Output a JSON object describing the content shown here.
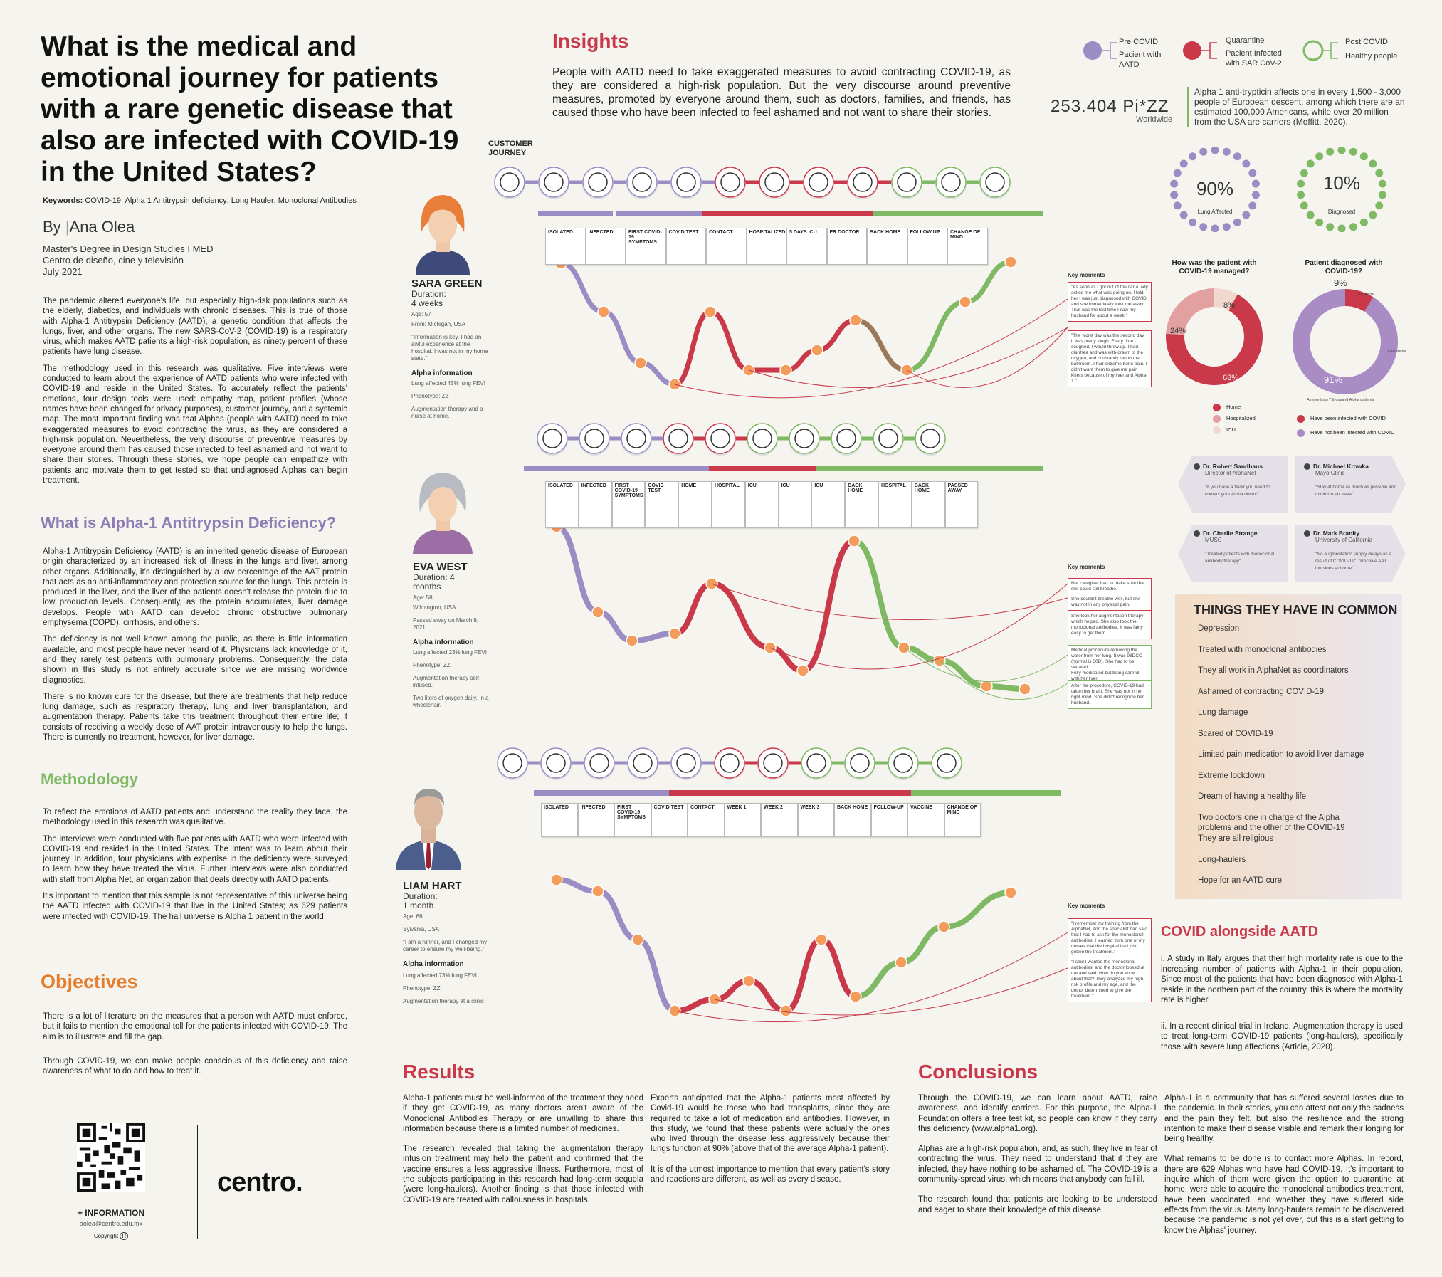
{
  "title": "What is the medical and emotional journey for patients with a rare genetic disease that also are infected with COVID-19 in the United States?",
  "keywords_label": "Keywords:",
  "keywords": "COVID-19; Alpha 1 Antitrypsin deficiency; Long Hauler; Monoclonal Antibodies",
  "by_label": "By",
  "author": "Ana Olea",
  "affiliation": [
    "Master's Degree in Design Studies  I MED",
    "Centro de diseño, cine y televisión",
    "July 2021"
  ],
  "intro": [
    "The pandemic altered everyone's life, but especially high-risk populations such as the elderly, diabetics, and individuals with chronic diseases. This is true of those with Alpha-1 Antitrypsin Deficiency (AATD), a genetic condition that affects the lungs, liver, and other organs. The new SARS-CoV-2 (COVID-19) is a respiratory virus, which makes AATD patients a high-risk population, as ninety percent of these patients have lung disease.",
    "The methodology used in this research was qualitative. Five interviews were conducted to learn about the experience of AATD patients who were infected with COVID-19 and reside in the United States. To accurately reflect the patients' emotions, four design tools were used: empathy map, patient profiles (whose names have been changed for privacy purposes), customer journey, and a systemic map. The most important finding was that Alphas (people with AATD) need to take exaggerated measures to avoid contracting the virus, as they are considered a high-risk population. Nevertheless, the very discourse of preventive measures by everyone around them has caused those infected to feel ashamed and not want to share their stories. Through these stories, we hope people can empathize with patients and motivate them to get tested so that undiagnosed Alphas can begin treatment."
  ],
  "aatd_heading": "What is Alpha-1 Antitrypsin Deficiency?",
  "aatd": [
    "Alpha-1 Antitrypsin Deficiency (AATD) is an inherited genetic disease of European origin characterized by an increased risk of illness in the lungs and liver, among other organs. Additionally, it's distinguished by a low percentage of the AAT protein that acts as an anti-inflammatory and protection source for the lungs. This protein is produced in the liver, and the liver of the patients doesn't release the protein due to low production levels. Consequently, as the protein accumulates, liver damage develops. People with AATD can develop chronic obstructive pulmonary emphysema (COPD), cirrhosis, and others.",
    "The deficiency is not well known among the public, as there is little information available, and most people have never heard of it. Physicians lack knowledge of it, and they rarely test patients with pulmonary problems. Consequently, the data shown in this study is not entirely accurate since we are missing worldwide diagnostics.",
    "There is no known cure for the disease, but there are treatments that help reduce lung damage, such as respiratory therapy, lung and liver transplantation, and augmentation therapy. Patients take this treatment throughout their entire life; it consists of receiving a weekly dose of AAT protein intravenously to help the lungs. There is currently no treatment, however, for liver damage."
  ],
  "method_heading": "Methodology",
  "method": [
    "To reflect the emotions of AATD patients and understand the reality they face, the methodology used in this research was qualitative.",
    "The interviews were conducted with five patients with AATD who were infected with COVID-19 and resided in the United States. The intent was to learn about their journey. In addition, four physicians with expertise in the deficiency were surveyed to learn how they have treated the virus. Further interviews were also conducted with staff from Alpha Net, an organization that deals directly with AATD patients.",
    "It's important to mention that this sample is not representative of this universe being the AATD infected with COVID-19 that live in the United States; as 629 patients were infected with COVID-19. The hall universe is Alpha 1 patient in the world."
  ],
  "obj_heading": "Objectives",
  "obj": [
    "There is a lot of literature on the measures that a person with AATD must enforce, but it fails to mention the emotional toll for the patients infected with COVID-19. The aim is to illustrate and fill the gap.",
    "Through COVID-19, we can make people conscious of this deficiency and raise awareness of what to do and how to treat it."
  ],
  "more_info": "+ INFORMATION",
  "email": "aolea@centro.edu.mx",
  "copyright": "Copyright",
  "logo": "centro.",
  "insights_heading": "Insights",
  "insights": "People with AATD need to take exaggerated measures to avoid contracting COVID-19, as they are considered a high-risk population. But the very discourse around preventive measures, promoted by everyone around them, such as doctors, families, and friends, has caused those who have been infected to feel ashamed and not want to share their stories.",
  "cj_label": [
    "CUSTOMER",
    "JOURNEY"
  ],
  "legend": [
    {
      "top": "Pre COVID",
      "bottom": "Pacient with AATD",
      "color": "#9b8cc4"
    },
    {
      "top": "Quarantine",
      "bottom": "Pacient Infected with SAR CoV-2",
      "color": "#c93949"
    },
    {
      "top": "Post COVID",
      "bottom": "Healthy people",
      "color": "#7fb963"
    }
  ],
  "stat_number": "253.404 Pi*ZZ",
  "stat_sub": "Worldwide",
  "stat_text": "Alpha 1 anti-trypticin affects one in every 1,500 - 3,000 people of European descent, among which there are an estimated 100,000 Americans, while over 20 million from the USA are carriers (Moffitt, 2020).",
  "ring1": {
    "pct": "90%",
    "label": "Lung Affected"
  },
  "ring2": {
    "pct": "10%",
    "label": "Diagnosed"
  },
  "donut1": {
    "title": "How was the patient with COVID-19 managed?",
    "labels": [
      "8%",
      "24%",
      "68%"
    ],
    "legend": [
      "Home",
      "Hospitalized",
      "ICU"
    ]
  },
  "donut2": {
    "title": "Patient diagnosed with COVID-19?",
    "labels": [
      "9%",
      "91%"
    ],
    "small": [
      "629 patients",
      "6,500 patients"
    ],
    "note": "A more than 7 thousand Alpha patients",
    "legend": [
      "Have been infected with COVID",
      "Have not been infected with COVID"
    ]
  },
  "patients": [
    {
      "name": "SARA GREEN",
      "duration_label": "Duration:",
      "duration": "4 weeks",
      "age": "Age: 57",
      "from": "From: Michigan, USA",
      "quote": "\"Information is key. I had an awful experience at the hospital. I was not in my home state.\"",
      "alpha_label": "Alpha information",
      "lung": "Lung affected 45% lung FEVI",
      "pheno": "Phenotype: ZZ",
      "therapy": "Augmentation therapy and a nurse at home."
    },
    {
      "name": "EVA  WEST",
      "duration_label": "Duration: 4",
      "duration": "months",
      "age": "Age: 58",
      "from": "Wilmington, USA",
      "quote": "Passed away on March 9, 2021",
      "alpha_label": "Alpha information",
      "lung": "Lung affected 23% lung FEVI",
      "pheno": "Phenotype: ZZ",
      "therapy": "Augmentation therapy self-infused.",
      "extra": "Two liters of oxygen daily. In a wheelchair."
    },
    {
      "name": "LIAM HART",
      "duration_label": "Duration:",
      "duration": "1 month",
      "age": "Age: 66",
      "from": "Sylvania, USA",
      "quote": "\"I am a runner, and I changed my career to ensure my well-being.\"",
      "alpha_label": "Alpha information",
      "lung": "Lung affected 73% lung FEVI",
      "pheno": "Phenotype: ZZ",
      "therapy": "Augmentation therapy at a clinic"
    }
  ],
  "journey1_cards": [
    "ISOLATED",
    "INFECTED",
    "FIRST COVID-19 SYMPTOMS",
    "COVID TEST",
    "CONTACT",
    "HOSPITALIZED",
    "5 DAYS ICU",
    "ER DOCTOR",
    "BACK HOME",
    "FOLLOW UP",
    "CHANGE OF MIND"
  ],
  "journey2_cards": [
    "ISOLATED",
    "INFECTED",
    "FIRST COVID-19 SYMPTOMS",
    "COVID TEST",
    "HOME",
    "HOSPITAL",
    "ICU",
    "ICU",
    "ICU",
    "BACK HOME",
    "HOSPITAL",
    "BACK HOME",
    "PASSED AWAY"
  ],
  "journey3_cards": [
    "ISOLATED",
    "INFECTED",
    "FIRST COVID-19 SYMPTOMS",
    "COVID TEST",
    "CONTACT",
    "WEEK 1",
    "WEEK 2",
    "WEEK 3",
    "BACK HOME",
    "FOLLOW-UP",
    "VACCINE",
    "CHANGE OF MIND"
  ],
  "key_moments": "Key moments",
  "km1": [
    "\"As soon as I got out of the car a lady asked me what was going on. I told her I was just diagnosed with COVID and she immediately took me away. That was the last time I saw my husband for about a week.\"",
    "\"The worst day was the second day, it was pretty tough. Every time I coughed, I would throw up. I had diarrhea and was with-drawn to the oxygen, and constantly ran to the bathroom. I had extreme bone pain. I didn't want them to give me pain killers because of my liver and Alpha-1.\""
  ],
  "km2": [
    "Her caregiver had to make sure that she could still breathe.",
    "She couldn't breathe well, but she was not in any physical pain.",
    "She took her augmentation therapy which helped. She also took the monoclonal antibodies. It was fairly easy to get them.",
    "Medical procedure removing the water from her lung. It was 98DCC (normal is 30D). She had to be sedated.",
    "Fully medicated but being careful with her liver.",
    "After the procedure, COVID-19 had taken her brain. She was not in her right mind. She didn't recognize her husband."
  ],
  "km3": [
    "\"I remember my training from the AlphaNet, and the specialist had said that I had to ask for the monoclonal antibodies. I learned from one of my nurses that the hospital had just gotten the treatment.\"",
    "\"I said I wanted the monoclonal antibodies, and the doctor looked at me and said: How do you know about that? They analyzed my high-risk profile and my age, and the doctor determined to give the treatment.\""
  ],
  "doctors": [
    {
      "name": "Dr. Robert Sandhaus",
      "org": "Director of AlphaNet",
      "quote": "\"If you have a fever you need to contact your Alpha doctor\"."
    },
    {
      "name": "Dr. Michael Krowka",
      "org": "Mayo Clinic",
      "quote": "\"Stay at home as much as possible and minimize air travel\"."
    },
    {
      "name": "Dr. Charlie Strange",
      "org": "MUSC",
      "quote": "\"Treated patients with monoclonal antibody therapy\"."
    },
    {
      "name": "Dr. Mark Branlty",
      "org": "University of California",
      "quote": "\"No augmentation supply delays as a result of COVID-19\". \"Receive AAT infusions at home\"."
    }
  ],
  "common_heading": "THINGS THEY HAVE IN COMMON",
  "common": [
    "Depression",
    "Treated with monoclonal antibodies",
    "They all work in AlphaNet as coordinators",
    "Ashamed of contracting COVID-19",
    "Lung damage",
    "Scared of COVID-19",
    "Limited pain medication to avoid liver damage",
    "Extreme lockdown",
    "Dream of having a healthy life",
    "Two doctors one in charge of the Alpha problems and the other of the COVID-19",
    "They are all religious",
    "Long-haulers",
    "Hope for an AATD cure"
  ],
  "covid_heading": "COVID alongside AATD",
  "covid": [
    "i. A study in Italy argues that their high mortality rate is due to the increasing number of patients with Alpha-1 in their population. Since most of the patients that have been diagnosed with Alpha-1 reside in the northern part of the country, this is where the mortality rate is higher.",
    "ii. In a recent clinical trial in Ireland, Augmentation therapy is used to treat long-term COVID-19 patients (long-haulers), specifically those with severe lung affections (Article, 2020)."
  ],
  "results_heading": "Results",
  "results_col1": [
    "Alpha-1 patients must be well-informed of the treatment they need if they get COVID-19, as many doctors aren't aware of the Monoclonal Antibodies Therapy or are unwilling to share this information because there is a limited number of medicines.",
    "The research revealed that taking the augmentation therapy infusion treatment may help the patient and confirmed that the vaccine ensures a less aggressive illness. Furthermore, most of the subjects participating in this research had long-term sequela (were long-haulers). Another finding is that those infected with COVID-19 are treated with callousness in hospitals."
  ],
  "results_col2": [
    "Experts anticipated that the Alpha-1 patients most affected by Covid-19 would be those who had transplants, since they are required to take a lot of medication and antibodies. However, in this study, we found that these patients were actually the ones who lived through the disease less aggressively because their lungs function at 90% (above that of the average Alpha-1 patient).",
    "It is of the utmost importance to mention that every patient's story and reactions are different, as well as every disease."
  ],
  "conc_heading": "Conclusions",
  "conc_col1": [
    "Through the COVID-19, we can learn about AATD, raise awareness, and identify carriers. For this purpose, the Alpha-1 Foundation offers a free test kit, so people can know if they carry this deficiency (www.alpha1.org).",
    "Alphas are a high-risk population, and, as such, they live in fear of contracting the virus. They need to understand that if they are infected, they have nothing to be ashamed of. The COVID-19 is a community-spread virus, which means that anybody can fall ill.",
    "The research found that patients are looking to be understood and eager to share their knowledge of this disease."
  ],
  "conc_col2": [
    "Alpha-1 is a community that has suffered several losses due to the pandemic. In their stories, you can attest not only the sadness and the pain they felt, but also the resilience and the strong intention to make their disease visible and remark their longing for being healthy.",
    "What remains to be done is to contact more Alphas. In record, there are 629 Alphas who have had COVID-19. It's important to inquire which of them were given the option to quarantine at home, were able to acquire the monoclonal antibodies treatment, have been vaccinated, and whether they have suffered side effects from the virus. Many long-haulers remain to be discovered because the pandemic is not yet over, but this is a start getting to know the Alphas' journey."
  ],
  "colors": {
    "purple": "#9b8cc4",
    "red": "#c93949",
    "green": "#7fb963",
    "orange": "#e57d2e"
  }
}
